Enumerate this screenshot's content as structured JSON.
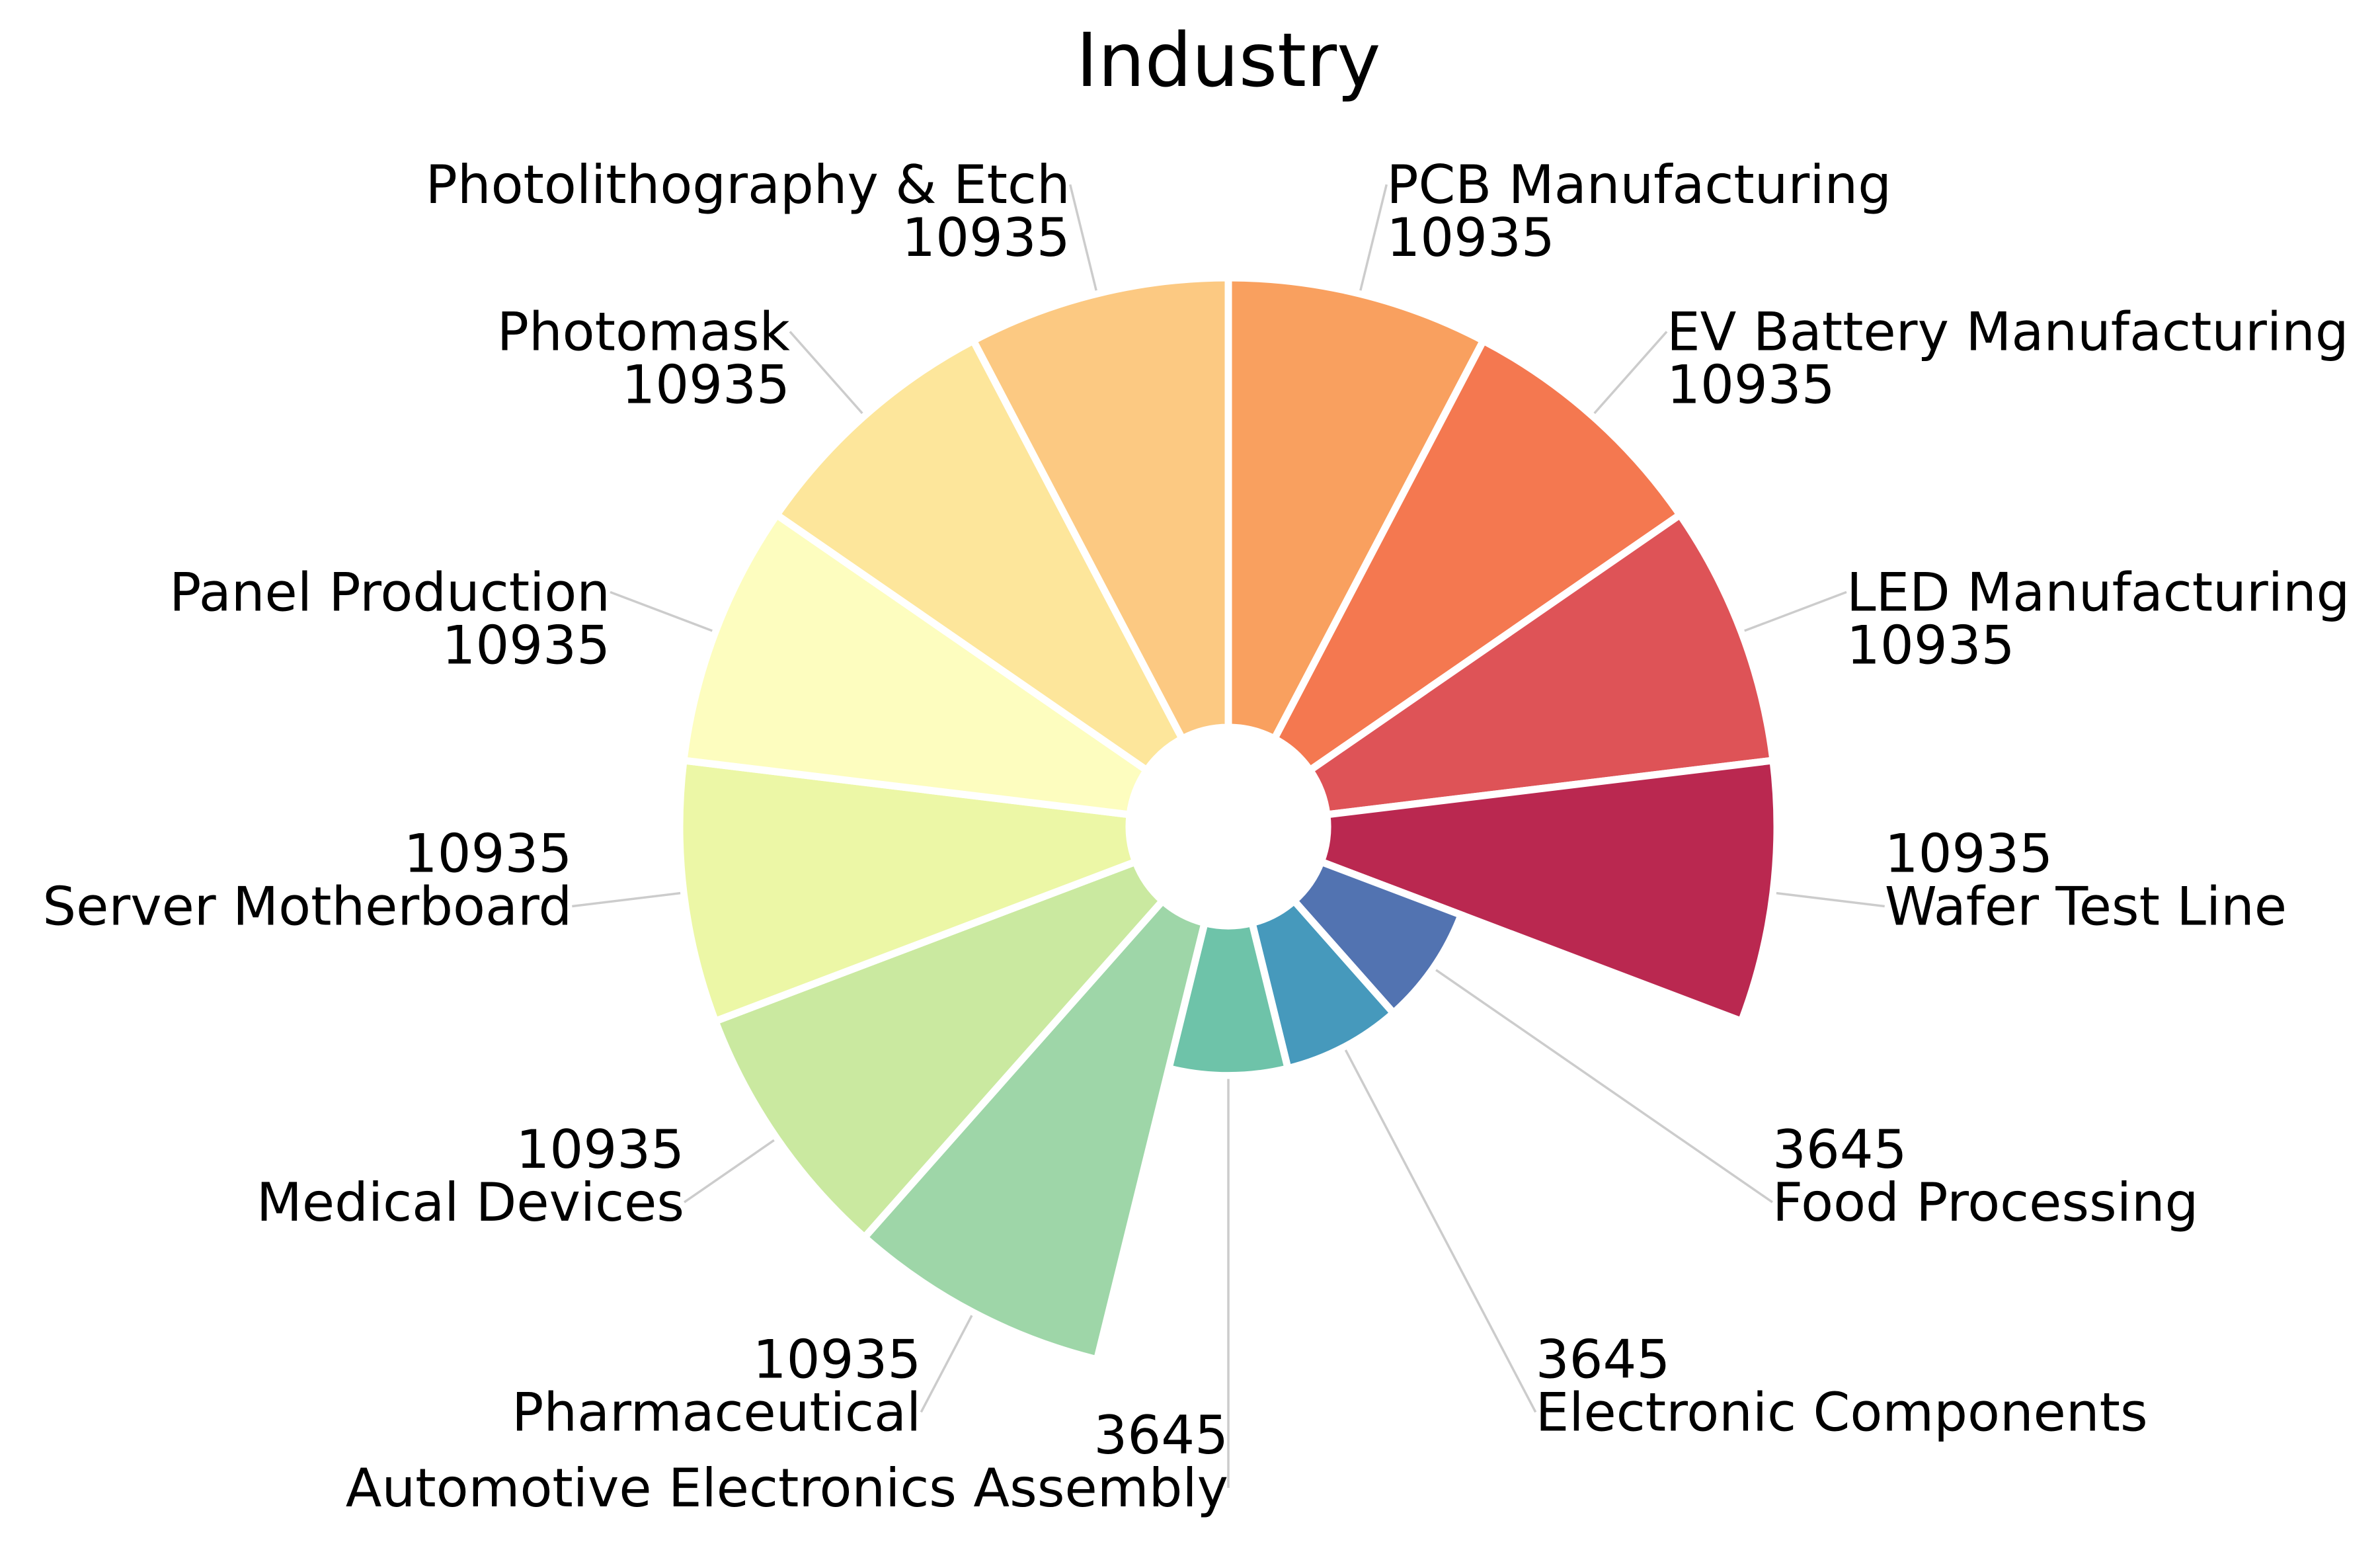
{
  "chart_data": {
    "type": "pie",
    "variant": "polar-area-donut",
    "title": "Industry",
    "start": "top",
    "direction": "clockwise",
    "max_value": 10935,
    "slices": [
      {
        "label": "PCB Manufacturing",
        "value": 10935,
        "color": "#f9a05f"
      },
      {
        "label": "EV Battery Manufacturing",
        "value": 10935,
        "color": "#f47850"
      },
      {
        "label": "LED Manufacturing",
        "value": 10935,
        "color": "#de5357"
      },
      {
        "label": "Wafer Test Line",
        "value": 10935,
        "color": "#ba2850"
      },
      {
        "label": "Food Processing",
        "value": 3645,
        "color": "#5273b1"
      },
      {
        "label": "Electronic Components",
        "value": 3645,
        "color": "#4699bc"
      },
      {
        "label": "Automotive Electronics Assembly",
        "value": 3645,
        "color": "#6ec3a9"
      },
      {
        "label": "Pharmaceutical",
        "value": 10935,
        "color": "#9ed6a8"
      },
      {
        "label": "Medical Devices",
        "value": 10935,
        "color": "#cae9a0"
      },
      {
        "label": "Server Motherboard",
        "value": 10935,
        "color": "#ecf7a6"
      },
      {
        "label": "Panel Production",
        "value": 10935,
        "color": "#fdfdbf"
      },
      {
        "label": "Photomask",
        "value": 10935,
        "color": "#fde69b"
      },
      {
        "label": "Photolithography & Etch",
        "value": 10935,
        "color": "#fcc982"
      }
    ]
  }
}
